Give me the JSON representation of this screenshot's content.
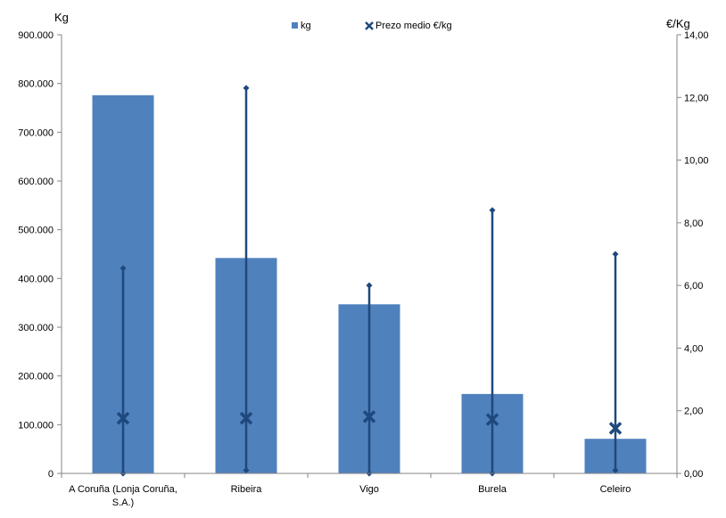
{
  "chart_data": {
    "type": "bar",
    "categories": [
      [
        "A Coruña (Lonja Coruña,",
        "S.A.)"
      ],
      [
        "Ribeira"
      ],
      [
        "Vigo"
      ],
      [
        "Burela"
      ],
      [
        "Celeiro"
      ]
    ],
    "left_axis": {
      "unit_label": "Kg",
      "ylim": [
        0,
        900000
      ],
      "ticks": [
        0,
        100000,
        200000,
        300000,
        400000,
        500000,
        600000,
        700000,
        800000,
        900000
      ],
      "tick_labels": [
        "0",
        "100.000",
        "200.000",
        "300.000",
        "400.000",
        "500.000",
        "600.000",
        "700.000",
        "800.000",
        "900.000"
      ]
    },
    "right_axis": {
      "unit_label": "€/Kg",
      "ylim": [
        0,
        14
      ],
      "ticks": [
        0,
        2,
        4,
        6,
        8,
        10,
        12,
        14
      ],
      "tick_labels": [
        "0,00",
        "2,00",
        "4,00",
        "6,00",
        "8,00",
        "10,00",
        "12,00",
        "14,00"
      ]
    },
    "series": [
      {
        "name": "kg",
        "axis": "left",
        "kind": "bar",
        "color": "#4f81bd",
        "values": [
          776000,
          442000,
          347000,
          163000,
          71000
        ]
      },
      {
        "name": "Prezo medio €/kg",
        "axis": "right",
        "kind": "marker-x",
        "color": "#1f497d",
        "values": [
          1.76,
          1.76,
          1.81,
          1.72,
          1.44
        ],
        "range_min": [
          0.0,
          0.1,
          0.0,
          0.0,
          0.1
        ],
        "range_max": [
          6.55,
          12.3,
          6.0,
          8.4,
          7.0
        ]
      }
    ],
    "legend_position": "top-center",
    "grid": false
  }
}
